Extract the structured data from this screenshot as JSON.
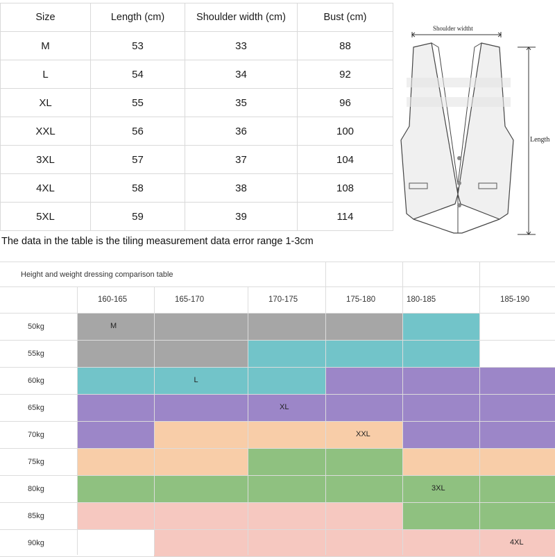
{
  "size_table": {
    "headers": [
      "Size",
      "Length (cm)",
      "Shoulder width (cm)",
      "Bust (cm)"
    ],
    "rows": [
      [
        "M",
        "53",
        "33",
        "88"
      ],
      [
        "L",
        "54",
        "34",
        "92"
      ],
      [
        "XL",
        "55",
        "35",
        "96"
      ],
      [
        "XXL",
        "56",
        "36",
        "100"
      ],
      [
        "3XL",
        "57",
        "37",
        "104"
      ],
      [
        "4XL",
        "58",
        "38",
        "108"
      ],
      [
        "5XL",
        "59",
        "39",
        "114"
      ]
    ]
  },
  "note": "The data in the table is the tiling measurement data error range 1-3cm",
  "diagram": {
    "shoulder_label": "Shoulder widtht",
    "length_label": "Length"
  },
  "dressing": {
    "title": "Height and weight dressing comparison table",
    "heights": [
      "160-165",
      "165-170",
      "170-175",
      "175-180",
      "180-185",
      "185-190"
    ],
    "weights": [
      "50kg",
      "55kg",
      "60kg",
      "65kg",
      "70kg",
      "75kg",
      "80kg",
      "85kg",
      "90kg"
    ],
    "colors": {
      "M": "#a6a6a6",
      "L": "#72c4c9",
      "XL": "#9c86c8",
      "XXL": "#f8cda8",
      "3XL": "#8fc180",
      "4XL": "#f6c8c0",
      "empty": "#ffffff"
    },
    "grid": [
      [
        "M",
        "M",
        "M",
        "M",
        "L",
        "empty"
      ],
      [
        "M",
        "M",
        "L",
        "L",
        "L",
        "empty"
      ],
      [
        "L",
        "L",
        "L",
        "XL",
        "XL",
        "XL"
      ],
      [
        "XL",
        "XL",
        "XL",
        "XL",
        "XL",
        "XL"
      ],
      [
        "XL",
        "XXL",
        "XXL",
        "XXL",
        "XL",
        "XL"
      ],
      [
        "XXL",
        "XXL",
        "3XL",
        "3XL",
        "XXL",
        "XXL"
      ],
      [
        "3XL",
        "3XL",
        "3XL",
        "3XL",
        "3XL",
        "3XL"
      ],
      [
        "4XL",
        "4XL",
        "4XL",
        "4XL",
        "3XL",
        "3XL"
      ],
      [
        "empty",
        "4XL",
        "4XL",
        "4XL",
        "4XL",
        "4XL"
      ]
    ],
    "size_labels": [
      {
        "text": "M",
        "row": 0,
        "col": 0
      },
      {
        "text": "L",
        "row": 2,
        "col": 1
      },
      {
        "text": "XL",
        "row": 3,
        "col": 2
      },
      {
        "text": "XXL",
        "row": 4,
        "col": 3
      },
      {
        "text": "3XL",
        "row": 6,
        "col": 4
      },
      {
        "text": "4XL",
        "row": 8,
        "col": 5
      }
    ]
  }
}
